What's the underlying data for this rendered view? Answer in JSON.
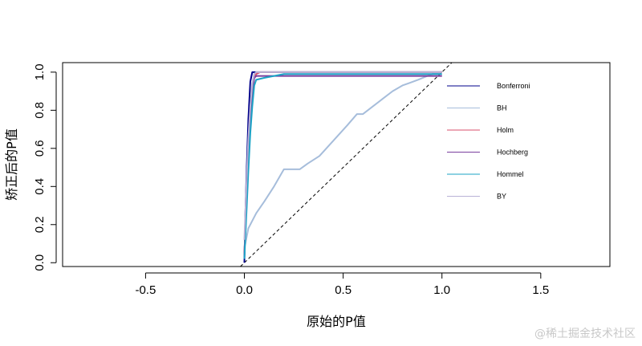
{
  "chart_data": {
    "type": "line",
    "title": "",
    "xlabel": "原始的P值",
    "ylabel": "矫正后的P值",
    "xlim": [
      -0.92,
      1.85
    ],
    "ylim": [
      -0.02,
      1.05
    ],
    "x_ticks": [
      -0.5,
      0.0,
      0.5,
      1.0,
      1.5
    ],
    "x_tick_labels": [
      "-0.5",
      "0.0",
      "0.5",
      "1.0",
      "1.5"
    ],
    "y_ticks": [
      0.0,
      0.2,
      0.4,
      0.6,
      0.8,
      1.0
    ],
    "y_tick_labels": [
      "0.0",
      "0.2",
      "0.4",
      "0.6",
      "0.8",
      "1.0"
    ],
    "grid": false,
    "legend_position": "top-right",
    "reference_line": {
      "type": "y=x",
      "style": "dashed",
      "color": "#000000"
    },
    "series": [
      {
        "name": "Bonferroni",
        "color": "#00008b",
        "x": [
          0.0,
          0.005,
          0.012,
          0.02,
          0.03,
          0.04,
          0.05,
          0.06,
          0.07,
          0.1,
          0.3,
          0.6,
          1.0
        ],
        "y": [
          0.0,
          0.25,
          0.5,
          0.75,
          0.95,
          1.0,
          1.0,
          1.0,
          1.0,
          1.0,
          1.0,
          1.0,
          1.0
        ]
      },
      {
        "name": "BH",
        "color": "#a6bddb",
        "x": [
          0.0,
          0.005,
          0.02,
          0.06,
          0.1,
          0.15,
          0.2,
          0.22,
          0.28,
          0.32,
          0.38,
          0.45,
          0.52,
          0.57,
          0.6,
          0.65,
          0.7,
          0.75,
          0.8,
          0.88,
          0.95,
          1.0
        ],
        "y": [
          0.08,
          0.1,
          0.18,
          0.26,
          0.32,
          0.4,
          0.49,
          0.49,
          0.49,
          0.52,
          0.56,
          0.64,
          0.72,
          0.78,
          0.78,
          0.82,
          0.86,
          0.9,
          0.93,
          0.96,
          0.99,
          1.0
        ]
      },
      {
        "name": "Holm",
        "color": "#d94f6b",
        "x": [
          0.0,
          0.01,
          0.02,
          0.03,
          0.04,
          0.05,
          0.06,
          0.08,
          0.2,
          0.5,
          1.0
        ],
        "y": [
          0.05,
          0.3,
          0.55,
          0.75,
          0.92,
          0.97,
          0.99,
          1.0,
          1.0,
          1.0,
          1.0
        ]
      },
      {
        "name": "Hochberg",
        "color": "#7b3f9e",
        "x": [
          0.0,
          0.01,
          0.02,
          0.03,
          0.04,
          0.05,
          0.06,
          0.2,
          0.5,
          1.0
        ],
        "y": [
          0.04,
          0.3,
          0.55,
          0.75,
          0.9,
          0.97,
          0.98,
          0.98,
          0.98,
          0.98
        ]
      },
      {
        "name": "Hommel",
        "color": "#1ba3c6",
        "x": [
          0.0,
          0.01,
          0.02,
          0.03,
          0.04,
          0.05,
          0.06,
          0.1,
          0.15,
          0.2,
          0.3,
          0.6,
          1.0
        ],
        "y": [
          0.02,
          0.25,
          0.48,
          0.68,
          0.82,
          0.93,
          0.96,
          0.97,
          0.98,
          0.99,
          0.99,
          0.99,
          0.99
        ]
      },
      {
        "name": "BY",
        "color": "#b9b2d6",
        "x": [
          0.0,
          0.01,
          0.02,
          0.03,
          0.04,
          0.05,
          0.06,
          0.08,
          0.15,
          0.3,
          0.6,
          1.0
        ],
        "y": [
          0.12,
          0.4,
          0.65,
          0.82,
          0.94,
          0.99,
          1.0,
          1.0,
          1.0,
          1.0,
          1.0,
          1.0
        ]
      }
    ]
  },
  "watermark": "@稀土掘金技术社区"
}
